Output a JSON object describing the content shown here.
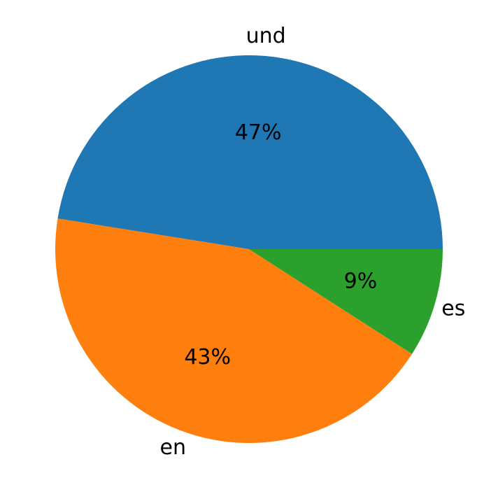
{
  "chart_data": {
    "type": "pie",
    "categories": [
      "und",
      "en",
      "es"
    ],
    "values": [
      47,
      43,
      9
    ],
    "value_labels": [
      "47%",
      "43%",
      "9%"
    ],
    "colors": [
      "#1f77b4",
      "#ff7f0e",
      "#2ca02c"
    ],
    "start_angle": 0,
    "direction": "counterclockwise"
  }
}
